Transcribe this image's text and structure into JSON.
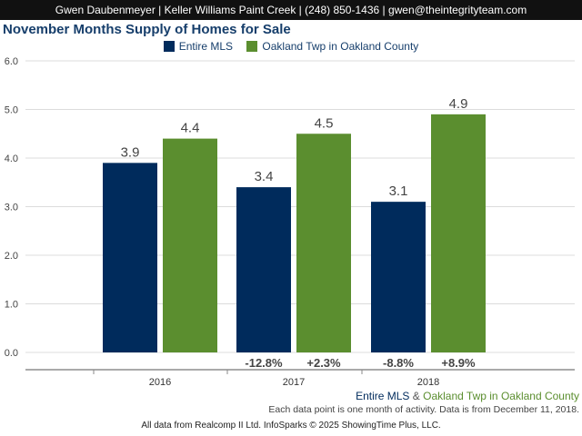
{
  "header": {
    "text": "Gwen Daubenmeyer | Keller Williams Paint Creek | (248) 850-1436 | gwen@theintegrityteam.com"
  },
  "colors": {
    "entire_mls": "#002b5c",
    "oakland_twp": "#5b8e2f",
    "title": "#163e6b",
    "header_bg": "#111111"
  },
  "chart_data": {
    "type": "bar",
    "title": "November Months Supply of Homes for Sale",
    "categories": [
      "2016",
      "2017",
      "2018"
    ],
    "series": [
      {
        "name": "Entire MLS",
        "values": [
          3.9,
          3.4,
          3.1
        ],
        "value_labels": [
          "3.9",
          "3.4",
          "3.1"
        ],
        "change_labels": [
          "",
          "-12.8%",
          "-8.8%"
        ]
      },
      {
        "name": "Oakland Twp in Oakland County",
        "values": [
          4.4,
          4.5,
          4.9
        ],
        "value_labels": [
          "4.4",
          "4.5",
          "4.9"
        ],
        "change_labels": [
          "",
          "+2.3%",
          "+8.9%"
        ]
      }
    ],
    "ylim": [
      0,
      6
    ],
    "yticks": [
      "0.0",
      "1.0",
      "2.0",
      "3.0",
      "4.0",
      "5.0",
      "6.0"
    ],
    "grid": true,
    "legend_position": "top-center"
  },
  "footer": {
    "legend_part1": "Entire MLS",
    "legend_amp": " & ",
    "legend_part2": "Oakland Twp in Oakland County",
    "note": "Each data point is one month of activity. Data is from December 11, 2018.",
    "credit": "All data from Realcomp II Ltd. InfoSparks © 2025 ShowingTime Plus, LLC."
  }
}
